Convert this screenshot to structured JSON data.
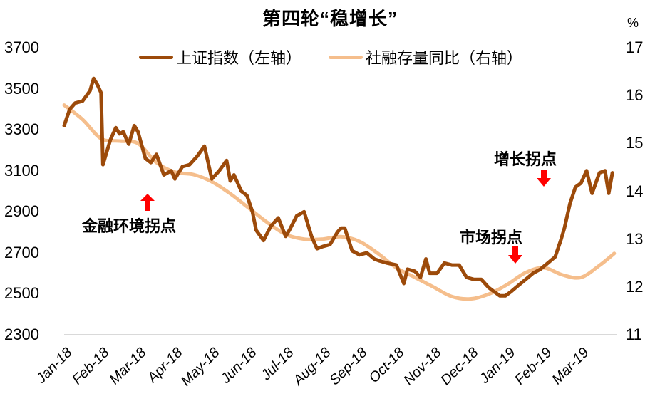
{
  "chart_data": {
    "type": "line",
    "title": "第四轮“稳增长”",
    "right_unit": "%",
    "legend_position": "top",
    "grid": false,
    "x_ticks": [
      "Jan-18",
      "Feb-18",
      "Mar-18",
      "Apr-18",
      "May-18",
      "Jun-18",
      "Jul-18",
      "Aug-18",
      "Sep-18",
      "Oct-18",
      "Nov-18",
      "Dec-18",
      "Jan-19",
      "Feb-19",
      "Mar-19"
    ],
    "y_left": {
      "label": "上证指数",
      "ticks": [
        "3700",
        "3500",
        "3300",
        "3100",
        "2900",
        "2700",
        "2500",
        "2300"
      ],
      "ylim": [
        2300,
        3700
      ]
    },
    "y_right": {
      "label": "社融存量同比 (%)",
      "ticks": [
        "17",
        "16",
        "15",
        "14",
        "13",
        "12",
        "11"
      ],
      "ylim": [
        11,
        17
      ]
    },
    "series": [
      {
        "name": "上证指数（左轴）",
        "axis": "left",
        "color": "#9C4A0A",
        "x": [
          0.0,
          0.15,
          0.3,
          0.5,
          0.7,
          0.8,
          0.9,
          1.0,
          1.05,
          1.15,
          1.2,
          1.25,
          1.4,
          1.5,
          1.6,
          1.75,
          1.9,
          2.0,
          2.2,
          2.35,
          2.5,
          2.7,
          2.9,
          3.0,
          3.2,
          3.4,
          3.6,
          3.8,
          4.0,
          4.2,
          4.4,
          4.5,
          4.6,
          4.8,
          4.95,
          5.1,
          5.2,
          5.4,
          5.6,
          5.8,
          6.0,
          6.1,
          6.3,
          6.5,
          6.7,
          6.85,
          7.0,
          7.2,
          7.4,
          7.5,
          7.6,
          7.8,
          8.0,
          8.2,
          8.4,
          8.55,
          8.75,
          9.0,
          9.2,
          9.3,
          9.5,
          9.65,
          9.8,
          9.9,
          10.1,
          10.3,
          10.5,
          10.7,
          10.9,
          11.1,
          11.3,
          11.5,
          11.65,
          11.8,
          11.95,
          12.1,
          12.3,
          12.5,
          12.7,
          12.9,
          13.1,
          13.3,
          13.45,
          13.55,
          13.7,
          13.85,
          14.0,
          14.15,
          14.3,
          14.5,
          14.65,
          14.75,
          14.85
        ],
        "values": [
          3320,
          3400,
          3430,
          3440,
          3490,
          3550,
          3520,
          3480,
          3130,
          3190,
          3220,
          3250,
          3310,
          3280,
          3290,
          3230,
          3320,
          3290,
          3160,
          3140,
          3180,
          3080,
          3100,
          3060,
          3120,
          3130,
          3170,
          3220,
          3060,
          3100,
          3150,
          3050,
          3080,
          3000,
          2980,
          2900,
          2810,
          2760,
          2830,
          2870,
          2780,
          2810,
          2880,
          2900,
          2780,
          2720,
          2730,
          2740,
          2800,
          2820,
          2820,
          2710,
          2690,
          2700,
          2670,
          2660,
          2650,
          2640,
          2550,
          2620,
          2610,
          2580,
          2670,
          2600,
          2600,
          2650,
          2640,
          2640,
          2580,
          2570,
          2570,
          2530,
          2510,
          2490,
          2490,
          2510,
          2540,
          2570,
          2600,
          2620,
          2650,
          2680,
          2760,
          2820,
          2940,
          3020,
          3040,
          3100,
          2990,
          3090,
          3100,
          2990,
          3090
        ]
      },
      {
        "name": "社融存量同比（右轴）",
        "axis": "right",
        "color": "#F5BE8C",
        "x": [
          0.0,
          0.5,
          1.0,
          1.5,
          2.0,
          2.5,
          3.0,
          3.5,
          4.0,
          4.5,
          5.0,
          5.5,
          6.0,
          6.5,
          7.0,
          7.5,
          8.0,
          8.5,
          9.0,
          9.5,
          10.0,
          10.5,
          11.0,
          11.5,
          12.0,
          12.5,
          13.0,
          13.5,
          14.0,
          14.5,
          14.9
        ],
        "values": [
          15.8,
          15.5,
          15.1,
          15.05,
          15.0,
          14.6,
          14.4,
          14.35,
          14.2,
          13.95,
          13.65,
          13.35,
          13.1,
          13.0,
          13.0,
          13.05,
          12.95,
          12.7,
          12.4,
          12.2,
          12.0,
          11.8,
          11.75,
          11.85,
          12.05,
          12.3,
          12.4,
          12.25,
          12.2,
          12.45,
          12.7
        ]
      }
    ],
    "annotations": [
      {
        "text": "金融环境拐点",
        "arrow": "up",
        "x_month": 2.3
      },
      {
        "text": "市场拐点",
        "arrow": "down",
        "x_month": 12.2
      },
      {
        "text": "增长拐点",
        "arrow": "down",
        "x_month": 13.4
      }
    ]
  },
  "annotation_color": "#FF0000",
  "axis_line_color": "#D9D9D9"
}
